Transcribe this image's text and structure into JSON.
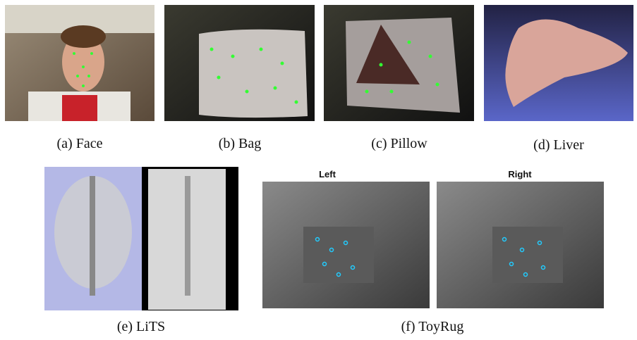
{
  "figure": {
    "panels": [
      {
        "caption": "(a) Face"
      },
      {
        "caption": "(b) Bag"
      },
      {
        "caption": "(c) Pillow"
      },
      {
        "caption": "(d) Liver"
      },
      {
        "caption": "(e) LiTS"
      },
      {
        "caption": "(f) ToyRug"
      }
    ],
    "views": [
      "Left",
      "Right"
    ]
  }
}
